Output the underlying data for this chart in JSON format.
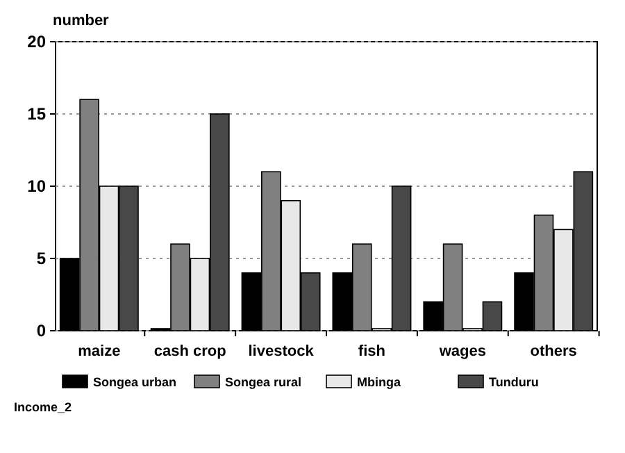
{
  "chart_data": {
    "type": "bar",
    "ylabel": "number",
    "categories": [
      "maize",
      "cash crop",
      "livestock",
      "fish",
      "wages",
      "others"
    ],
    "series": [
      {
        "name": "Songea urban",
        "color": "#000000",
        "values": [
          5,
          0,
          4,
          4,
          2,
          4
        ]
      },
      {
        "name": "Songea rural",
        "color": "#808080",
        "values": [
          16,
          6,
          11,
          6,
          6,
          8
        ]
      },
      {
        "name": "Mbinga",
        "color": "#e8e8e8",
        "values": [
          10,
          5,
          9,
          0,
          0,
          7
        ]
      },
      {
        "name": "Tunduru",
        "color": "#484848",
        "values": [
          10,
          15,
          4,
          10,
          2,
          11
        ]
      }
    ],
    "ylim": [
      0,
      20
    ],
    "yticks": [
      0,
      5,
      10,
      15,
      20
    ],
    "grid": "y",
    "legend": "bottom",
    "annotations": [
      "Income_2"
    ]
  }
}
